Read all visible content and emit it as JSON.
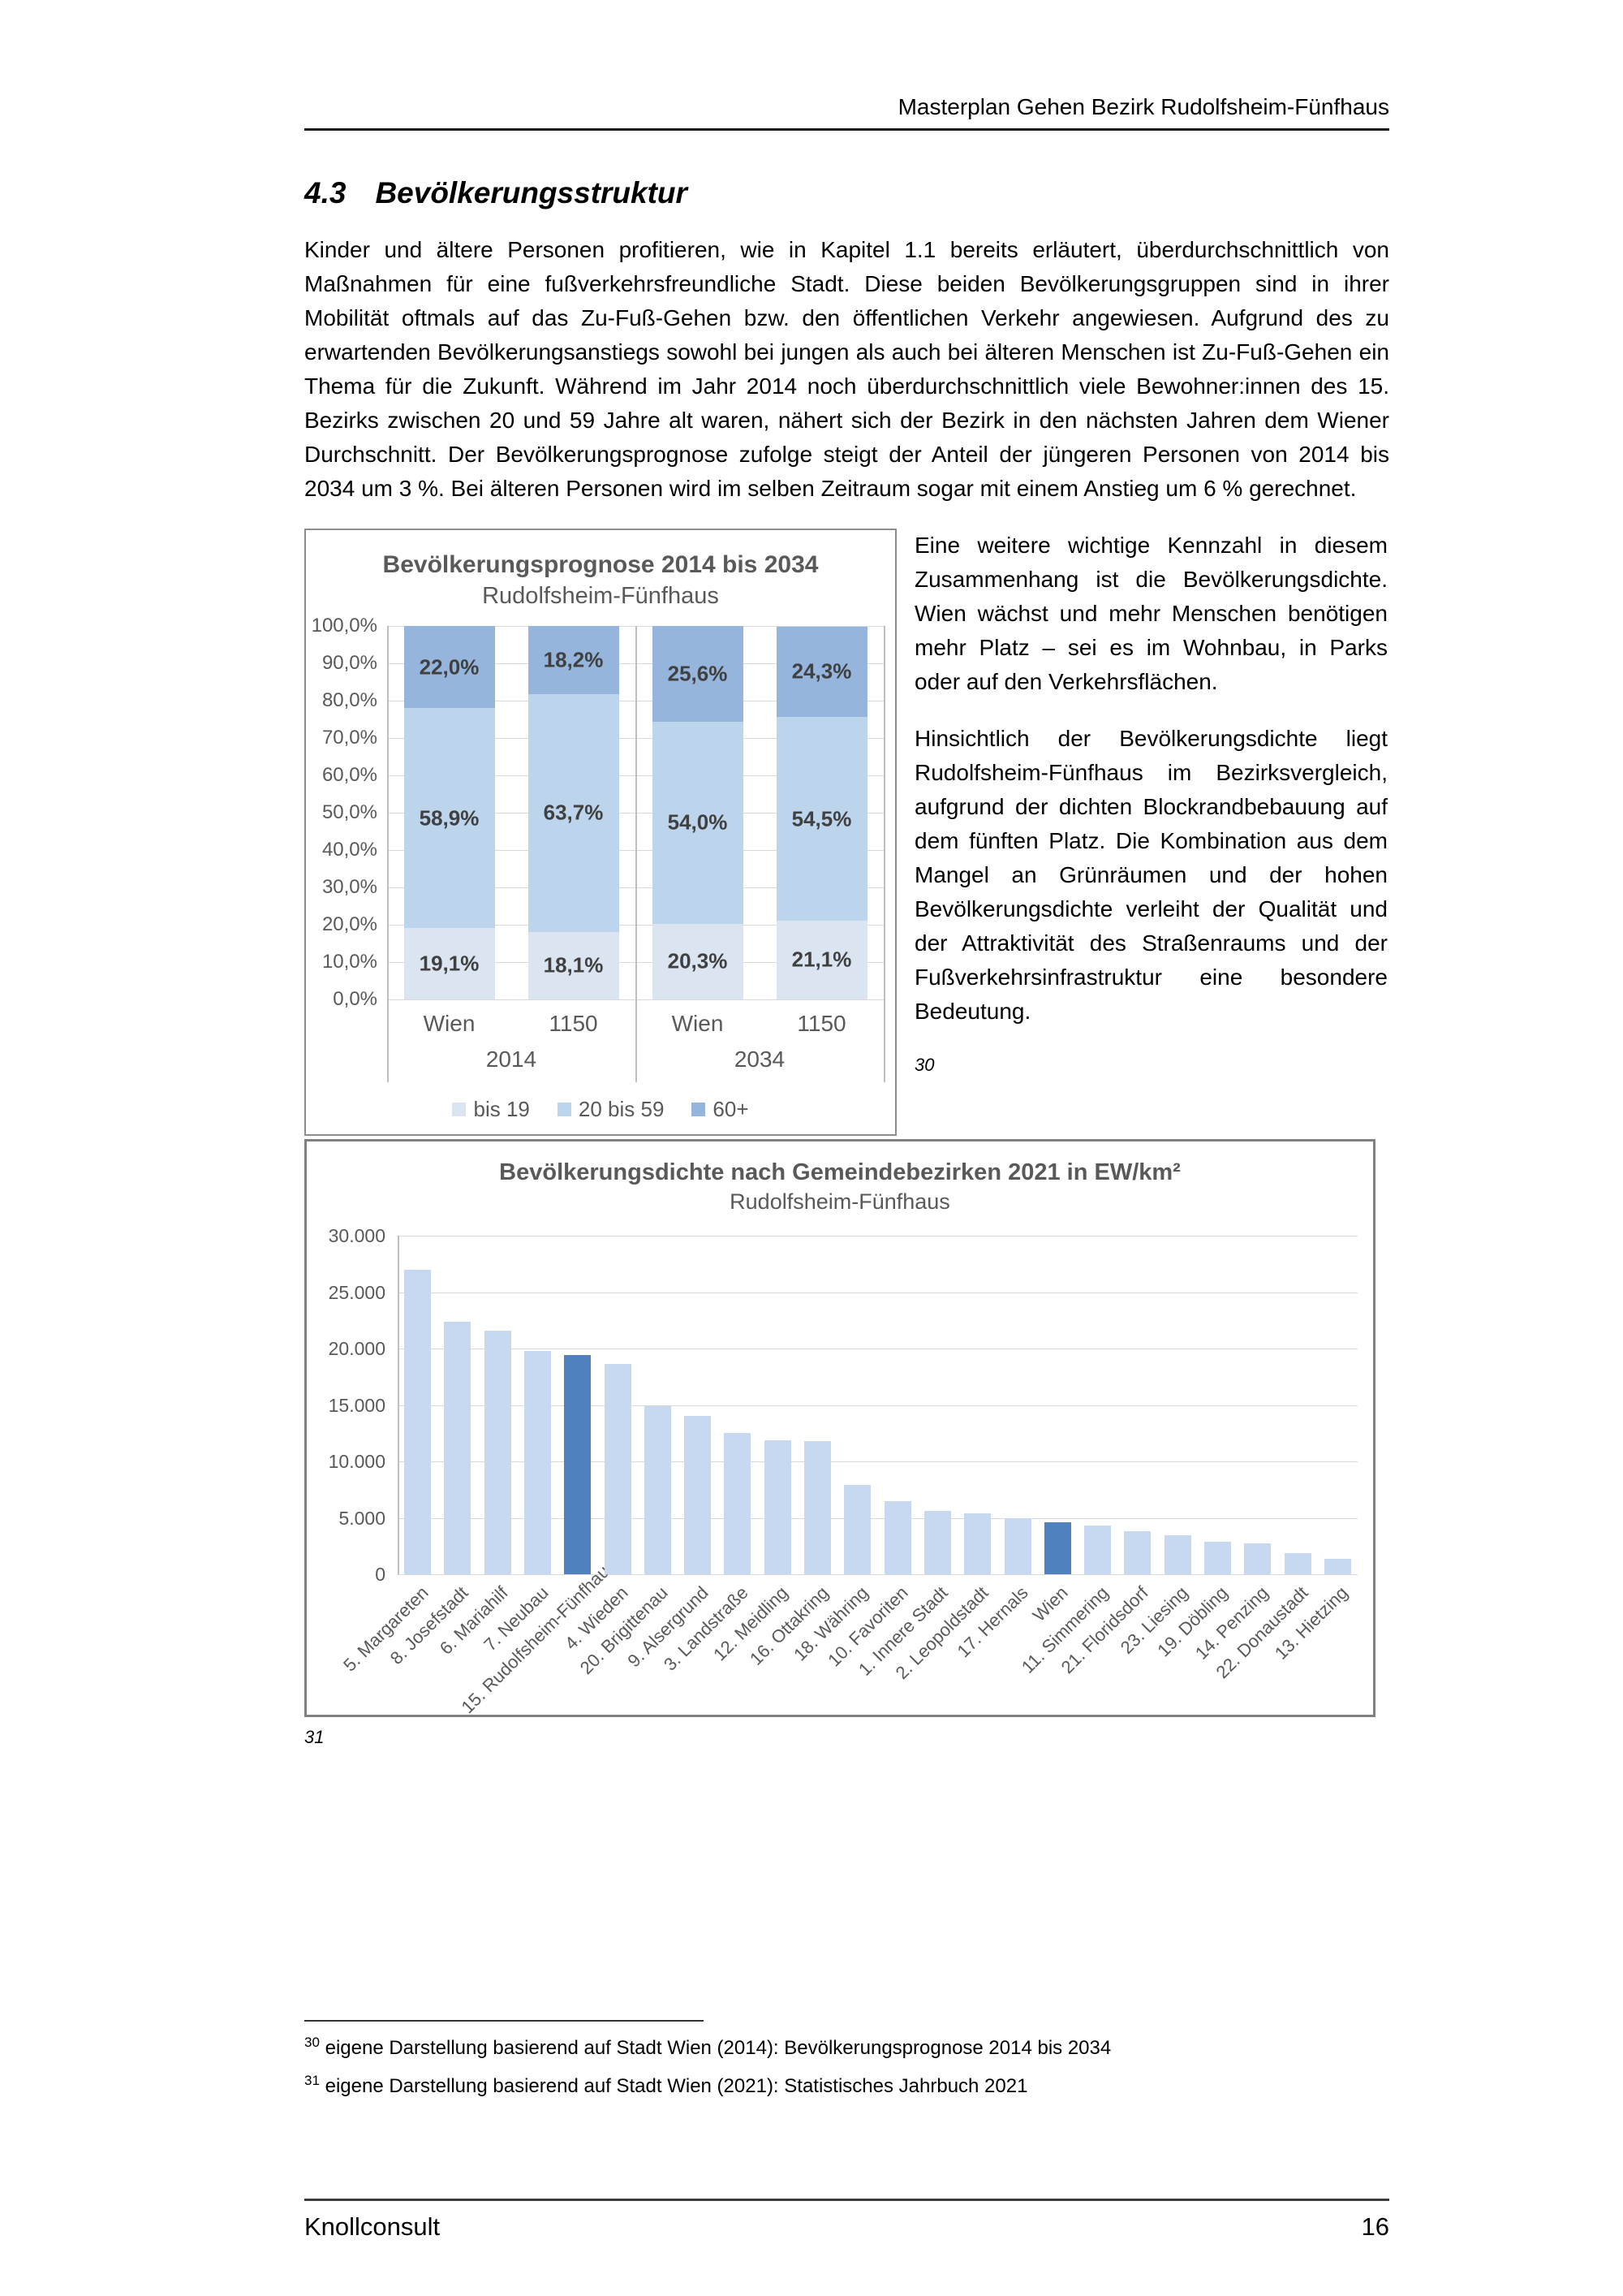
{
  "page": {
    "header": {
      "title": "Masterplan Gehen Bezirk Rudolfsheim-Fünfhaus"
    },
    "section": {
      "number": "4.3",
      "title": "Bevölkerungsstruktur"
    },
    "intro_paragraph": "Kinder und ältere Personen profitieren, wie in Kapitel 1.1 bereits erläutert, überdurchschnittlich von Maßnahmen für eine fußverkehrsfreundliche Stadt. Diese beiden Bevölkerungsgruppen sind in ihrer Mobilität oftmals auf das Zu-Fuß-Gehen bzw. den öffentlichen Verkehr angewiesen. Aufgrund des zu erwartenden Bevölkerungsanstiegs sowohl bei jungen als auch bei älteren Menschen ist Zu-Fuß-Gehen ein Thema für die Zukunft. Während im Jahr 2014 noch überdurchschnittlich viele Bewohner:innen des 15. Bezirks zwischen 20 und 59 Jahre alt waren, nähert sich der Bezirk in den nächsten Jahren dem Wiener Durchschnitt. Der Bevölkerungsprognose zufolge steigt der Anteil der jüngeren Personen von 2014 bis 2034 um 3 %. Bei älteren Personen wird im selben Zeitraum sogar mit einem Anstieg um 6 % gerechnet.",
    "right_column": {
      "paragraph1": "Eine weitere wichtige Kennzahl in diesem Zusammenhang ist die Bevölkerungsdichte. Wien wächst und mehr Menschen benötigen mehr Platz – sei es im Wohnbau, in Parks oder auf den Verkehrsflächen.",
      "paragraph2": "Hinsichtlich der Bevölkerungsdichte liegt Rudolfsheim-Fünfhaus im Bezirksvergleich, aufgrund der dichten Blockrandbebauung auf dem fünften Platz. Die Kombination aus dem Mangel an Grünräumen und der hohen Bevölkerungsdichte verleiht der Qualität und der Attraktivität des Straßenraums und der Fußverkehrsinfrastruktur eine besondere Bedeutung.",
      "footnote_ref": "30"
    },
    "chart2_footnote_ref": "31",
    "footnotes": [
      {
        "marker": "30",
        "text": " eigene Darstellung basierend auf Stadt Wien (2014): Bevölkerungsprognose 2014 bis 2034"
      },
      {
        "marker": "31",
        "text": " eigene Darstellung basierend auf Stadt Wien (2021): Statistisches Jahrbuch 2021"
      }
    ],
    "footer": {
      "company": "Knollconsult",
      "page_number": "16"
    }
  },
  "chart_data": [
    {
      "type": "bar",
      "stacked": true,
      "title": "Bevölkerungsprognose 2014 bis 2034",
      "subtitle": "Rudolfsheim-Fünfhaus",
      "categories": [
        "Wien",
        "1150",
        "Wien",
        "1150"
      ],
      "group_labels": [
        "2014",
        "2034"
      ],
      "series": [
        {
          "name": "bis 19",
          "color": "#dbe5f2",
          "values": [
            19.1,
            18.1,
            20.3,
            21.1
          ],
          "labels": [
            "19,1%",
            "18,1%",
            "20,3%",
            "21,1%"
          ]
        },
        {
          "name": "20 bis 59",
          "color": "#bcd5ec",
          "values": [
            58.9,
            63.7,
            54.0,
            54.5
          ],
          "labels": [
            "58,9%",
            "63,7%",
            "54,0%",
            "54,5%"
          ]
        },
        {
          "name": "60+",
          "color": "#95b5dc",
          "values": [
            22.0,
            18.2,
            25.6,
            24.3
          ],
          "labels": [
            "22,0%",
            "18,2%",
            "25,6%",
            "24,3%"
          ]
        }
      ],
      "y_ticks": [
        "100,0%",
        "90,0%",
        "80,0%",
        "70,0%",
        "60,0%",
        "50,0%",
        "40,0%",
        "30,0%",
        "20,0%",
        "10,0%",
        "0,0%"
      ],
      "ylim": [
        0,
        100
      ],
      "grid": true,
      "legend_position": "bottom"
    },
    {
      "type": "bar",
      "title": "Bevölkerungsdichte nach Gemeindebezirken 2021 in EW/km²",
      "subtitle": "Rudolfsheim-Fünfhaus",
      "categories": [
        "5. Margareten",
        "8. Josefstadt",
        "6. Mariahilf",
        "7. Neubau",
        "15. Rudolfsheim-Fünfhaus",
        "4. Wieden",
        "20. Brigittenau",
        "9. Alsergrund",
        "3. Landstraße",
        "12. Meidling",
        "16. Ottakring",
        "18. Währing",
        "10. Favoriten",
        "1. Innere Stadt",
        "2. Leopoldstadt",
        "17. Hernals",
        "Wien",
        "11. Simmering",
        "21. Floridsdorf",
        "23. Liesing",
        "19. Döbling",
        "14. Penzing",
        "22. Donaustadt",
        "13. Hietzing"
      ],
      "values": [
        27000,
        22400,
        21550,
        19750,
        19450,
        18600,
        14900,
        14000,
        12500,
        11900,
        11800,
        7950,
        6450,
        5600,
        5400,
        4950,
        4600,
        4300,
        3800,
        3450,
        2900,
        2700,
        1850,
        1400
      ],
      "bar_color": "#c6d9f0",
      "highlight_color": "#4e81bd",
      "highlight_indices": [
        4,
        16
      ],
      "y_ticks": [
        "30.000",
        "25.000",
        "20.000",
        "15.000",
        "10.000",
        "5.000",
        "0"
      ],
      "ylim": [
        0,
        30000
      ],
      "grid": true
    }
  ]
}
